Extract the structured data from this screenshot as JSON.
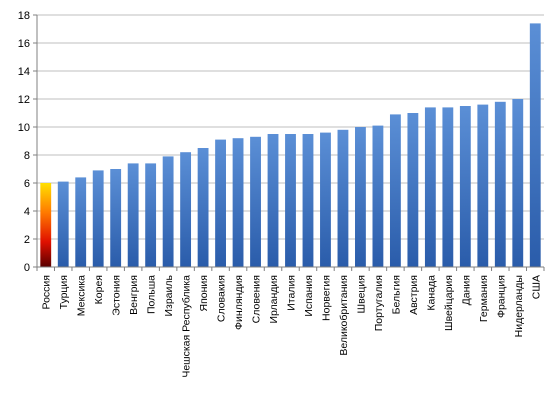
{
  "chart_data": {
    "type": "bar",
    "title": "",
    "xlabel": "",
    "ylabel": "",
    "ylim": [
      0,
      18
    ],
    "yticks": [
      0,
      2,
      4,
      6,
      8,
      10,
      12,
      14,
      16,
      18
    ],
    "grid": true,
    "legend": "none",
    "categories": [
      "Россия",
      "Турция",
      "Мексика",
      "Корея",
      "Эстония",
      "Венгрия",
      "Польша",
      "Израиль",
      "Чешская Республика",
      "Япония",
      "Словакия",
      "Финляндия",
      "Словения",
      "Ирландия",
      "Италия",
      "Испания",
      "Норвегия",
      "Великобритания",
      "Швеция",
      "Португалия",
      "Бельгия",
      "Австрия",
      "Канада",
      "Швейцария",
      "Дания",
      "Германия",
      "Франция",
      "Нидерланды",
      "США"
    ],
    "values": [
      6.0,
      6.1,
      6.4,
      6.9,
      7.0,
      7.4,
      7.4,
      7.9,
      8.2,
      8.5,
      9.1,
      9.2,
      9.3,
      9.5,
      9.5,
      9.5,
      9.6,
      9.8,
      10.0,
      10.1,
      10.9,
      11.0,
      11.4,
      11.4,
      11.5,
      11.6,
      11.8,
      12.0,
      17.4
    ],
    "colors": {
      "bar_top": "#5b8fd6",
      "bar_bottom": "#2a5caa",
      "highlight_top": "#ffe000",
      "highlight_mid": "#ff7a00",
      "highlight_low": "#e01000",
      "highlight_bottom": "#5a0000",
      "grid": "#bfbfbf",
      "axis": "#808080"
    },
    "highlight_index": 0
  }
}
